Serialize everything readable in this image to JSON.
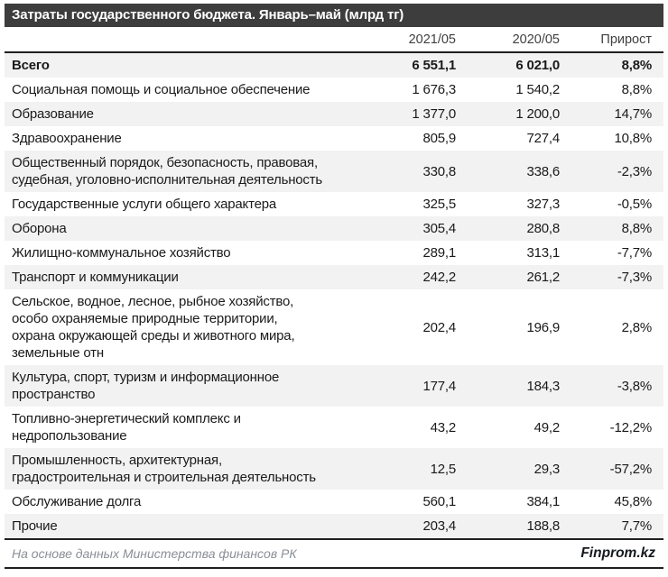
{
  "title": "Затраты государственного бюджета. Январь–май (млрд тг)",
  "columns": [
    "2021/05",
    "2020/05",
    "Прирост"
  ],
  "table": {
    "rows": [
      {
        "label": "Всего",
        "v2021": "6 551,1",
        "v2020": "6 021,0",
        "growth": "8,8%",
        "bold": true
      },
      {
        "label": "Социальная помощь и социальное обеспечение",
        "v2021": "1 676,3",
        "v2020": "1 540,2",
        "growth": "8,8%"
      },
      {
        "label": "Образование",
        "v2021": "1 377,0",
        "v2020": "1 200,0",
        "growth": "14,7%"
      },
      {
        "label": "Здравоохранение",
        "v2021": "805,9",
        "v2020": "727,4",
        "growth": "10,8%"
      },
      {
        "label": "Общественный порядок, безопасность, правовая,\nсудебная, уголовно-исполнительная деятельность",
        "v2021": "330,8",
        "v2020": "338,6",
        "growth": "-2,3%"
      },
      {
        "label": "Государственные услуги общего характера",
        "v2021": "325,5",
        "v2020": "327,3",
        "growth": "-0,5%"
      },
      {
        "label": "Оборона",
        "v2021": "305,4",
        "v2020": "280,8",
        "growth": "8,8%"
      },
      {
        "label": "Жилищно-коммунальное хозяйство",
        "v2021": "289,1",
        "v2020": "313,1",
        "growth": "-7,7%"
      },
      {
        "label": "Транспорт и коммуникации",
        "v2021": "242,2",
        "v2020": "261,2",
        "growth": "-7,3%"
      },
      {
        "label": "Сельское, водное, лесное, рыбное хозяйство,\nособо охраняемые природные территории,\nохрана окружающей среды и животного мира,\nземельные отн",
        "v2021": "202,4",
        "v2020": "196,9",
        "growth": "2,8%"
      },
      {
        "label": "Культура, спорт, туризм и информационное\nпространство",
        "v2021": "177,4",
        "v2020": "184,3",
        "growth": "-3,8%"
      },
      {
        "label": "Топливно-энергетический комплекс и\nнедропользование",
        "v2021": "43,2",
        "v2020": "49,2",
        "growth": "-12,2%"
      },
      {
        "label": "Промышленность, архитектурная,\nградостроительная и строительная деятельность",
        "v2021": "12,5",
        "v2020": "29,3",
        "growth": "-57,2%"
      },
      {
        "label": "Обслуживание долга",
        "v2021": "560,1",
        "v2020": "384,1",
        "growth": "45,8%"
      },
      {
        "label": "Прочие",
        "v2021": "203,4",
        "v2020": "188,8",
        "growth": "7,7%"
      }
    ]
  },
  "footer": {
    "source": "На основе данных Министерства финансов РК",
    "brand": "Finprom.kz"
  },
  "colors": {
    "title_bar_bg": "#3d3d3d",
    "title_text": "#ffffff",
    "row_alt_bg": "#f2f2f2",
    "body_text": "#1a1a1a",
    "header_text": "#404040",
    "separator": "#1f1f1f",
    "source_text": "#8a8e96"
  },
  "chart_data": {
    "type": "table",
    "title": "Затраты государственного бюджета. Январь–май (млрд тг)",
    "columns": [
      "",
      "2021/05",
      "2020/05",
      "Прирост"
    ],
    "unit": "млрд тг",
    "rows": [
      {
        "category": "Всего",
        "v2021_05": 6551.1,
        "v2020_05": 6021.0,
        "growth_pct": 8.8
      },
      {
        "category": "Социальная помощь и социальное обеспечение",
        "v2021_05": 1676.3,
        "v2020_05": 1540.2,
        "growth_pct": 8.8
      },
      {
        "category": "Образование",
        "v2021_05": 1377.0,
        "v2020_05": 1200.0,
        "growth_pct": 14.7
      },
      {
        "category": "Здравоохранение",
        "v2021_05": 805.9,
        "v2020_05": 727.4,
        "growth_pct": 10.8
      },
      {
        "category": "Общественный порядок, безопасность, правовая, судебная, уголовно-исполнительная деятельность",
        "v2021_05": 330.8,
        "v2020_05": 338.6,
        "growth_pct": -2.3
      },
      {
        "category": "Государственные услуги общего характера",
        "v2021_05": 325.5,
        "v2020_05": 327.3,
        "growth_pct": -0.5
      },
      {
        "category": "Оборона",
        "v2021_05": 305.4,
        "v2020_05": 280.8,
        "growth_pct": 8.8
      },
      {
        "category": "Жилищно-коммунальное хозяйство",
        "v2021_05": 289.1,
        "v2020_05": 313.1,
        "growth_pct": -7.7
      },
      {
        "category": "Транспорт и коммуникации",
        "v2021_05": 242.2,
        "v2020_05": 261.2,
        "growth_pct": -7.3
      },
      {
        "category": "Сельское, водное, лесное, рыбное хозяйство, особо охраняемые природные территории, охрана окружающей среды и животного мира, земельные отн",
        "v2021_05": 202.4,
        "v2020_05": 196.9,
        "growth_pct": 2.8
      },
      {
        "category": "Культура, спорт, туризм и информационное пространство",
        "v2021_05": 177.4,
        "v2020_05": 184.3,
        "growth_pct": -3.8
      },
      {
        "category": "Топливно-энергетический комплекс и недропользование",
        "v2021_05": 43.2,
        "v2020_05": 49.2,
        "growth_pct": -12.2
      },
      {
        "category": "Промышленность, архитектурная, градостроительная и строительная деятельность",
        "v2021_05": 12.5,
        "v2020_05": 29.3,
        "growth_pct": -57.2
      },
      {
        "category": "Обслуживание долга",
        "v2021_05": 560.1,
        "v2020_05": 384.1,
        "growth_pct": 45.8
      },
      {
        "category": "Прочие",
        "v2021_05": 203.4,
        "v2020_05": 188.8,
        "growth_pct": 7.7
      }
    ]
  }
}
